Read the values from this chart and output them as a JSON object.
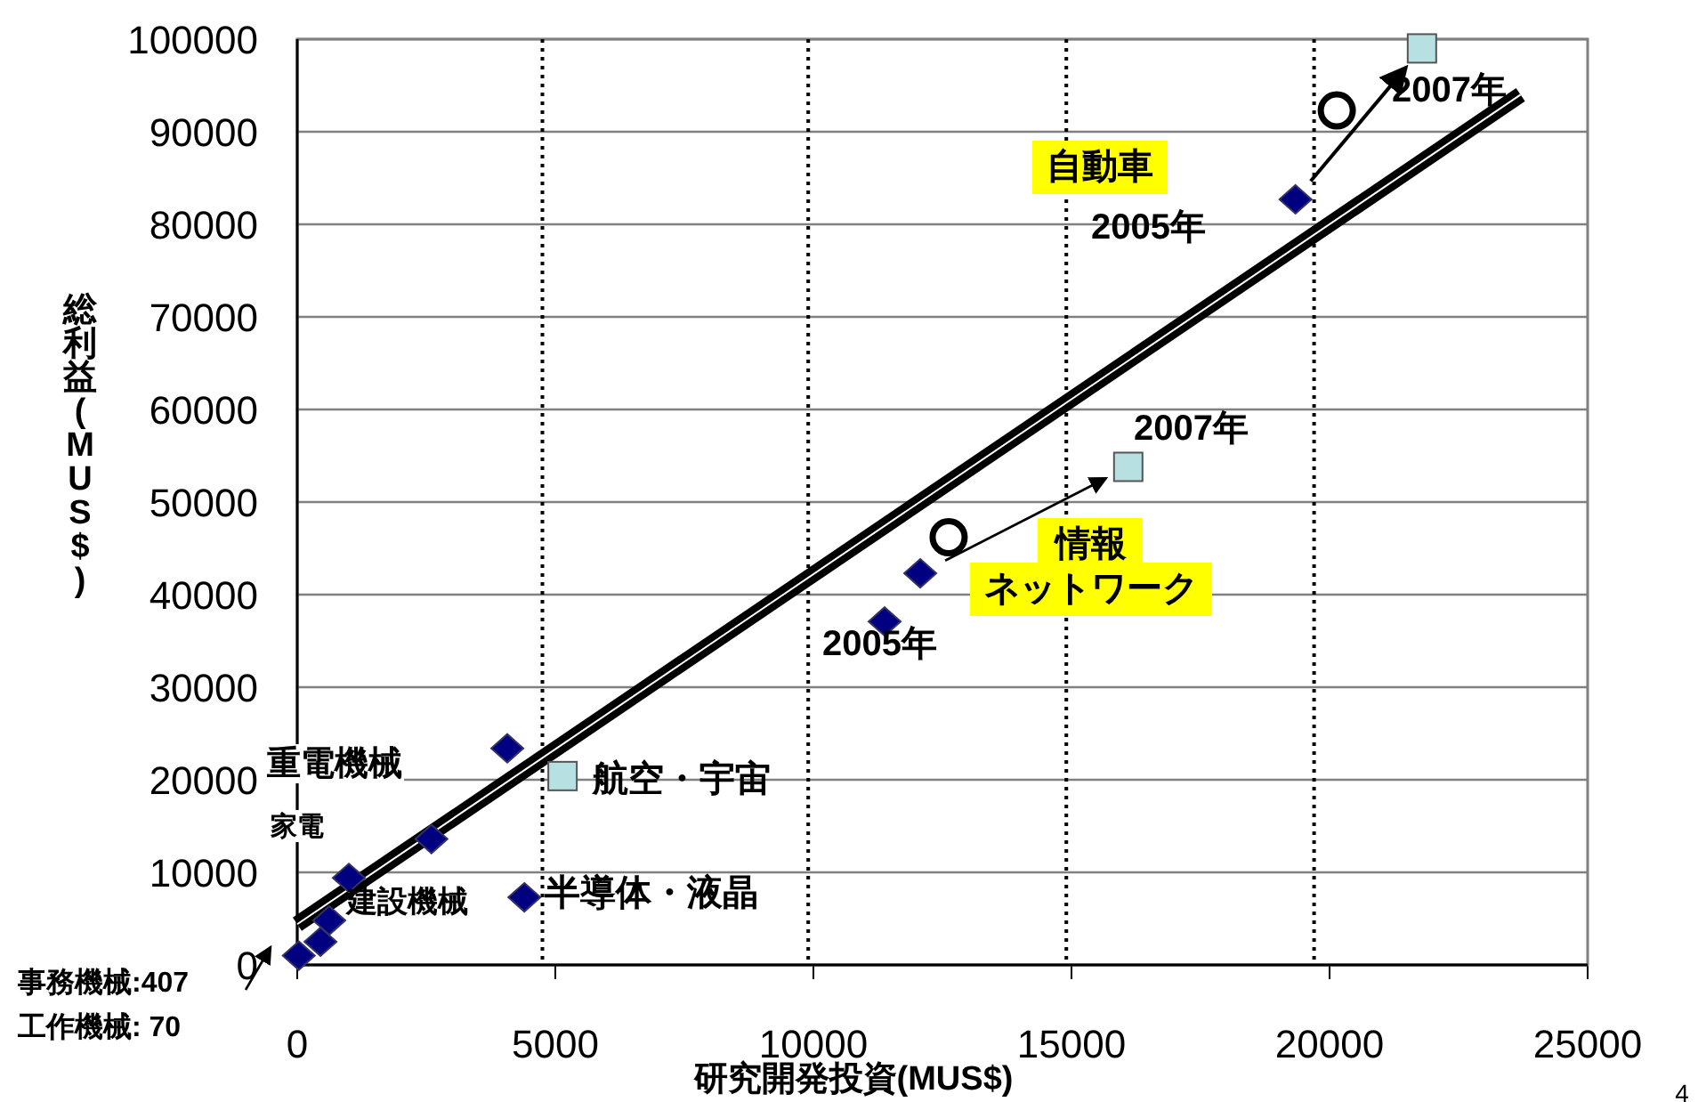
{
  "chart_data": {
    "type": "scatter",
    "xlabel": "研究開発投資(MUS$)",
    "ylabel": "総利益(MUS$)",
    "xlim": [
      0,
      25000
    ],
    "xticks": [
      0,
      5000,
      10000,
      15000,
      20000,
      25000
    ],
    "ylim": [
      0,
      100000
    ],
    "yticks": [
      0,
      10000,
      20000,
      30000,
      40000,
      50000,
      60000,
      70000,
      80000,
      90000,
      100000
    ],
    "grid": "y",
    "series": [
      {
        "color": "#000080",
        "marker": "diamond",
        "x": [
          30,
          450,
          620,
          1000,
          2600,
          4070,
          4400,
          11380,
          12070,
          19340
        ],
        "values": [
          1000,
          2500,
          4800,
          9400,
          13600,
          23400,
          7300,
          37100,
          42300,
          82700
        ]
      },
      {
        "color": "#b7e0e2",
        "marker": "square",
        "x": [
          5140,
          16100,
          21790
        ],
        "values": [
          20400,
          53800,
          99000
        ]
      },
      {
        "color": "#000000",
        "marker": "circle",
        "x": [
          12620,
          20140
        ],
        "values": [
          46200,
          92300
        ]
      },
      {
        "type": "line",
        "color": "#000000",
        "marker": "none",
        "line_style": "solid",
        "x": [
          0,
          23700
        ],
        "values": [
          4400,
          94000
        ]
      }
    ],
    "ref_lines": [
      {
        "axis": "x",
        "value": 4750,
        "line_style": "dotted",
        "color": "#000000"
      },
      {
        "axis": "x",
        "value": 9900,
        "line_style": "dotted",
        "color": "#000000"
      },
      {
        "axis": "x",
        "value": 14900,
        "line_style": "dotted",
        "color": "#000000"
      },
      {
        "axis": "x",
        "value": 19700,
        "line_style": "dotted",
        "color": "#000000"
      }
    ],
    "annotations": [
      "2007年",
      "自動車",
      "2005年",
      "2007年",
      "情報",
      "ネットワーク",
      "2005年",
      "建設機械",
      "半導体・液晶",
      "航空・宇宙",
      "重電機械",
      "家電",
      "事務機械:407",
      "工作機械:  70",
      "4"
    ]
  }
}
